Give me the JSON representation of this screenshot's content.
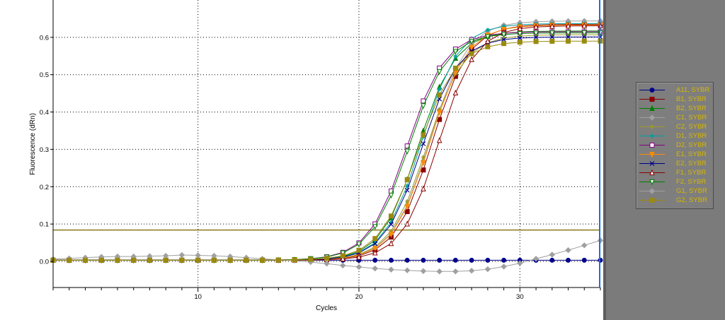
{
  "chart_data": {
    "type": "line",
    "xlabel": "Cycles",
    "ylabel": "Fluorescence (dRn)",
    "xlim": [
      1,
      35
    ],
    "ylim": [
      -0.07,
      0.7
    ],
    "xticks": [
      10,
      20,
      30
    ],
    "yticks": [
      0.0,
      0.1,
      0.2,
      0.3,
      0.4,
      0.5,
      0.6
    ],
    "ytick_labels": [
      "0.0",
      "0.1",
      "0.2",
      "0.3",
      "0.4",
      "0.5",
      "0.6"
    ],
    "grid": true,
    "threshold": 0.084,
    "threshold_color": "#8a7a1a",
    "cursor_x": 35,
    "cursor_color": "#1e6ee6",
    "legend_position": "right",
    "series": [
      {
        "name": "A11, SYBR",
        "color": "#00008b",
        "marker": "circle-filled",
        "type": "flat",
        "base": 0.003
      },
      {
        "name": "B1, SYBR",
        "color": "#8b0000",
        "marker": "square-filled",
        "type": "sigmoid",
        "plateau": 0.632,
        "midpoint": 24.55,
        "slope": 1.15,
        "base": 0.003
      },
      {
        "name": "B2, SYBR",
        "color": "#008000",
        "marker": "triangle-filled",
        "type": "sigmoid",
        "plateau": 0.614,
        "midpoint": 23.7,
        "slope": 1.15,
        "base": 0.003
      },
      {
        "name": "C1, SYBR",
        "color": "#a0a0a0",
        "marker": "diamond-filled",
        "type": "sigmoid",
        "plateau": 0.64,
        "midpoint": 24.4,
        "slope": 1.15,
        "base": 0.004
      },
      {
        "name": "C2, SYBR",
        "color": "#9a9a2a",
        "marker": "star",
        "type": "sigmoid",
        "plateau": 0.604,
        "midpoint": 24.2,
        "slope": 1.15,
        "base": 0.003
      },
      {
        "name": "D1, SYBR",
        "color": "#00a0a0",
        "marker": "star",
        "type": "sigmoid",
        "plateau": 0.634,
        "midpoint": 23.9,
        "slope": 1.15,
        "base": 0.003
      },
      {
        "name": "D2, SYBR",
        "color": "#800080",
        "marker": "square-open",
        "type": "sigmoid",
        "plateau": 0.612,
        "midpoint": 23.0,
        "slope": 1.2,
        "base": 0.003
      },
      {
        "name": "E1, SYBR",
        "color": "#ff8c00",
        "marker": "triangle-down-filled",
        "type": "sigmoid",
        "plateau": 0.63,
        "midpoint": 24.4,
        "slope": 1.15,
        "base": 0.003
      },
      {
        "name": "E2, SYBR",
        "color": "#00008b",
        "marker": "x",
        "type": "sigmoid",
        "plateau": 0.598,
        "midpoint": 23.9,
        "slope": 1.15,
        "base": 0.003
      },
      {
        "name": "F1, SYBR",
        "color": "#8b0000",
        "marker": "triangle-open",
        "type": "sigmoid",
        "plateau": 0.628,
        "midpoint": 24.95,
        "slope": 1.15,
        "base": 0.003
      },
      {
        "name": "F2, SYBR",
        "color": "#008000",
        "marker": "triangle-down-open",
        "type": "sigmoid",
        "plateau": 0.609,
        "midpoint": 23.1,
        "slope": 1.2,
        "base": 0.003
      },
      {
        "name": "G1, SYBR",
        "color": "#a0a0a0",
        "marker": "diamond-filled",
        "type": "points",
        "x": [
          1,
          2,
          3,
          4,
          5,
          6,
          7,
          8,
          9,
          10,
          11,
          12,
          13,
          14,
          15,
          16,
          17,
          18,
          19,
          20,
          21,
          22,
          23,
          24,
          25,
          26,
          27,
          28,
          29,
          30,
          31,
          32,
          33,
          34,
          35
        ],
        "y": [
          0.006,
          0.008,
          0.01,
          0.012,
          0.013,
          0.013,
          0.014,
          0.015,
          0.017,
          0.016,
          0.015,
          0.013,
          0.01,
          0.007,
          0.004,
          0.002,
          -0.002,
          -0.006,
          -0.011,
          -0.015,
          -0.019,
          -0.022,
          -0.024,
          -0.026,
          -0.027,
          -0.027,
          -0.025,
          -0.021,
          -0.014,
          -0.005,
          0.007,
          0.018,
          0.03,
          0.043,
          0.056
        ]
      },
      {
        "name": "G2, SYBR",
        "color": "#9a8a10",
        "marker": "square-filled",
        "type": "sigmoid",
        "plateau": 0.587,
        "midpoint": 23.65,
        "slope": 1.2,
        "base": 0.003
      }
    ]
  }
}
